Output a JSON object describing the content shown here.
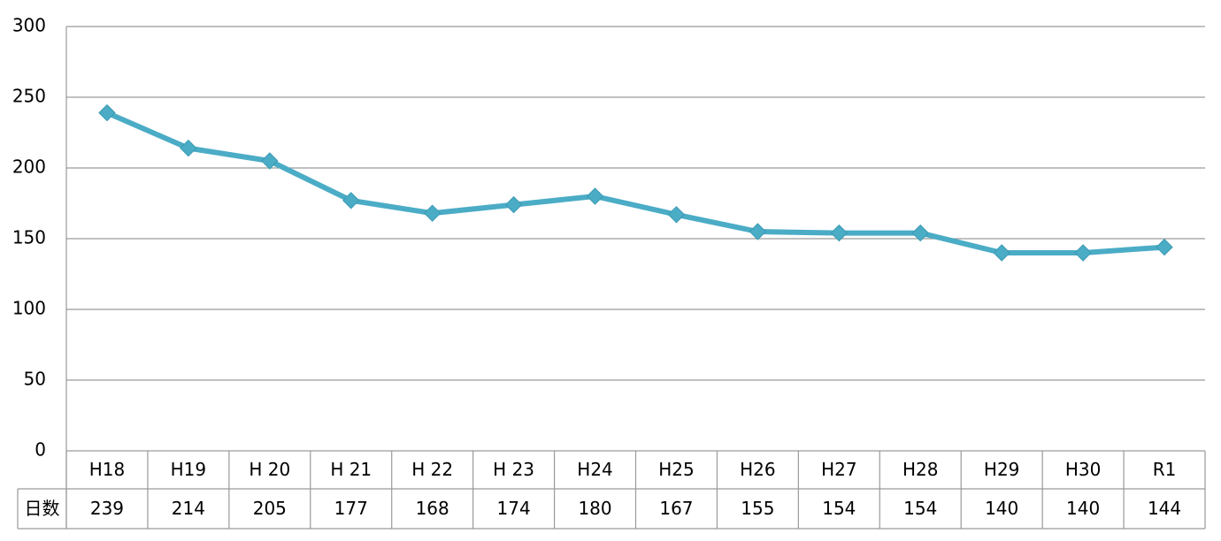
{
  "chart_data": {
    "type": "line",
    "categories": [
      "H18",
      "H19",
      "H 20",
      "H 21",
      "H 22",
      "H 23",
      "H24",
      "H25",
      "H26",
      "H27",
      "H28",
      "H29",
      "H30",
      "R1"
    ],
    "series": [
      {
        "name": "日数",
        "color": "#4bacc6",
        "values": [
          239,
          214,
          205,
          177,
          168,
          174,
          180,
          167,
          155,
          154,
          154,
          140,
          140,
          144
        ]
      }
    ],
    "ylim": [
      0,
      300
    ],
    "yticks": [
      0,
      50,
      100,
      150,
      200,
      250,
      300
    ],
    "grid": true
  }
}
